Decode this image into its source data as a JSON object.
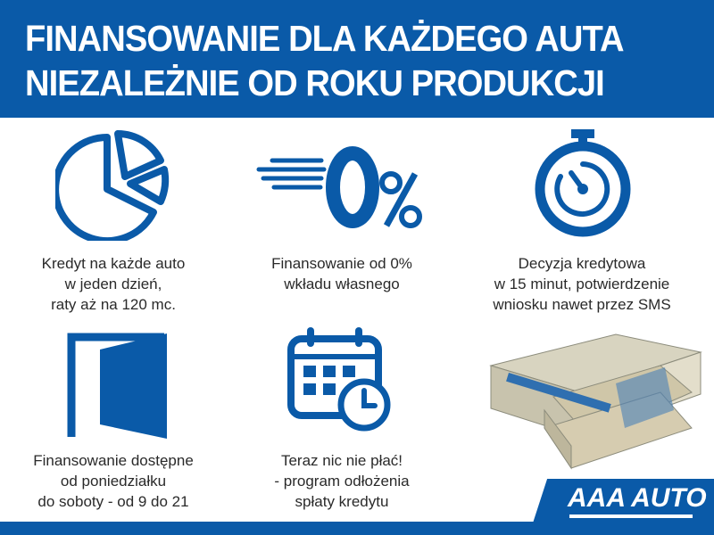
{
  "header": {
    "line1": "FINANSOWANIE DLA KAŻDEGO AUTA",
    "line2": "NIEZALEŻNIE OD ROKU PRODUKCJI"
  },
  "features": [
    {
      "icon": "pie-chart-icon",
      "lines": [
        "Kredyt na każde auto",
        "w jeden dzień,",
        "raty aż na 120 mc."
      ]
    },
    {
      "icon": "zero-percent-icon",
      "lines": [
        "Finansowanie od 0%",
        "wkładu własnego"
      ]
    },
    {
      "icon": "stopwatch-icon",
      "lines": [
        "Decyzja kredytowa",
        "w 15 minut, potwierdzenie",
        "wniosku nawet przez SMS"
      ]
    },
    {
      "icon": "door-icon",
      "lines": [
        "Finansowanie dostępne",
        "od poniedziałku",
        "do soboty - od 9 do 21"
      ]
    },
    {
      "icon": "calendar-clock-icon",
      "lines": [
        "Teraz nic nie płać!",
        "- program odłożenia",
        "spłaty kredytu"
      ]
    }
  ],
  "logo": "AAA AUTO",
  "colors": {
    "brand_blue": "#0a5aa8",
    "text": "#2a2a2a"
  }
}
